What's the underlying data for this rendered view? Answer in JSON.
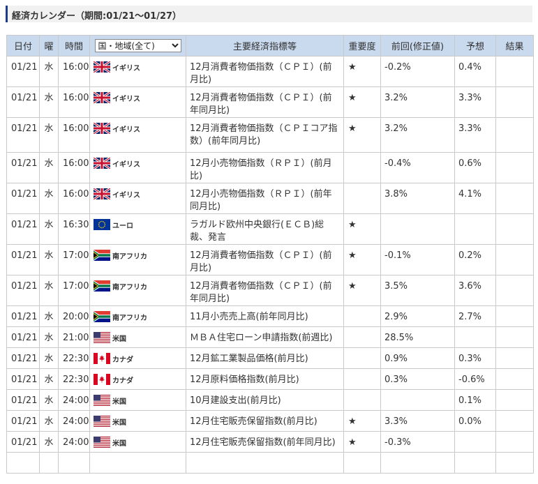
{
  "title": "経済カレンダー（期間:01/21〜01/27）",
  "columns": {
    "date": "日付",
    "dow": "曜",
    "time": "時間",
    "region_select": "国・地域(全て)",
    "indicator": "主要経済指標等",
    "importance": "重要度",
    "previous": "前回(修正値)",
    "forecast": "予想",
    "result": "結果"
  },
  "rows": [
    {
      "date": "01/21",
      "dow": "水",
      "time": "16:00",
      "country": "イギリス",
      "flag": "uk-flag-icon",
      "indicator": "12月消費者物価指数（ＣＰＩ）(前月比)",
      "importance": "★",
      "previous": "-0.2%",
      "forecast": "0.4%",
      "result": ""
    },
    {
      "date": "01/21",
      "dow": "水",
      "time": "16:00",
      "country": "イギリス",
      "flag": "uk-flag-icon",
      "indicator": "12月消費者物価指数（ＣＰＩ）(前年同月比)",
      "importance": "★",
      "previous": "3.2%",
      "forecast": "3.3%",
      "result": ""
    },
    {
      "date": "01/21",
      "dow": "水",
      "time": "16:00",
      "country": "イギリス",
      "flag": "uk-flag-icon",
      "indicator": "12月消費者物価指数（ＣＰＩコア指数）(前年同月比)",
      "importance": "★",
      "previous": "3.2%",
      "forecast": "3.3%",
      "result": ""
    },
    {
      "date": "01/21",
      "dow": "水",
      "time": "16:00",
      "country": "イギリス",
      "flag": "uk-flag-icon",
      "indicator": "12月小売物価指数（ＲＰＩ）(前月比)",
      "importance": "",
      "previous": "-0.4%",
      "forecast": "0.6%",
      "result": ""
    },
    {
      "date": "01/21",
      "dow": "水",
      "time": "16:00",
      "country": "イギリス",
      "flag": "uk-flag-icon",
      "indicator": "12月小売物価指数（ＲＰＩ）(前年同月比)",
      "importance": "",
      "previous": "3.8%",
      "forecast": "4.1%",
      "result": ""
    },
    {
      "date": "01/21",
      "dow": "水",
      "time": "16:30",
      "country": "ユーロ",
      "flag": "eu-flag-icon",
      "indicator": "ラガルド欧州中央銀行(ＥＣＢ)総裁、発言",
      "importance": "★",
      "previous": "",
      "forecast": "",
      "result": ""
    },
    {
      "date": "01/21",
      "dow": "水",
      "time": "17:00",
      "country": "南アフリカ",
      "flag": "za-flag-icon",
      "indicator": "12月消費者物価指数（ＣＰＩ）(前月比)",
      "importance": "★",
      "previous": "-0.1%",
      "forecast": "0.2%",
      "result": ""
    },
    {
      "date": "01/21",
      "dow": "水",
      "time": "17:00",
      "country": "南アフリカ",
      "flag": "za-flag-icon",
      "indicator": "12月消費者物価指数（ＣＰＩ）(前年同月比)",
      "importance": "★",
      "previous": "3.5%",
      "forecast": "3.6%",
      "result": ""
    },
    {
      "date": "01/21",
      "dow": "水",
      "time": "20:00",
      "country": "南アフリカ",
      "flag": "za-flag-icon",
      "indicator": "11月小売売上高(前年同月比)",
      "importance": "",
      "previous": "2.9%",
      "forecast": "2.7%",
      "result": ""
    },
    {
      "date": "01/21",
      "dow": "水",
      "time": "21:00",
      "country": "米国",
      "flag": "us-flag-icon",
      "indicator": "ＭＢＡ住宅ローン申請指数(前週比)",
      "importance": "",
      "previous": "28.5%",
      "forecast": "",
      "result": ""
    },
    {
      "date": "01/21",
      "dow": "水",
      "time": "22:30",
      "country": "カナダ",
      "flag": "ca-flag-icon",
      "indicator": "12月鉱工業製品価格(前月比)",
      "importance": "",
      "previous": "0.9%",
      "forecast": "0.3%",
      "result": ""
    },
    {
      "date": "01/21",
      "dow": "水",
      "time": "22:30",
      "country": "カナダ",
      "flag": "ca-flag-icon",
      "indicator": "12月原料価格指数(前月比)",
      "importance": "",
      "previous": "0.3%",
      "forecast": "-0.6%",
      "result": ""
    },
    {
      "date": "01/21",
      "dow": "水",
      "time": "24:00",
      "country": "米国",
      "flag": "us-flag-icon",
      "indicator": "10月建設支出(前月比)",
      "importance": "",
      "previous": "",
      "forecast": "0.1%",
      "result": ""
    },
    {
      "date": "01/21",
      "dow": "水",
      "time": "24:00",
      "country": "米国",
      "flag": "us-flag-icon",
      "indicator": "12月住宅販売保留指数(前月比)",
      "importance": "★",
      "previous": "3.3%",
      "forecast": "0.0%",
      "result": ""
    },
    {
      "date": "01/21",
      "dow": "水",
      "time": "24:00",
      "country": "米国",
      "flag": "us-flag-icon",
      "indicator": "12月住宅販売保留指数(前年同月比)",
      "importance": "★",
      "previous": "-0.3%",
      "forecast": "",
      "result": ""
    }
  ]
}
